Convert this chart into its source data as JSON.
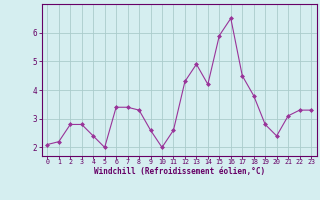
{
  "x": [
    0,
    1,
    2,
    3,
    4,
    5,
    6,
    7,
    8,
    9,
    10,
    11,
    12,
    13,
    14,
    15,
    16,
    17,
    18,
    19,
    20,
    21,
    22,
    23
  ],
  "y": [
    2.1,
    2.2,
    2.8,
    2.8,
    2.4,
    2.0,
    3.4,
    3.4,
    3.3,
    2.6,
    2.0,
    2.6,
    4.3,
    4.9,
    4.2,
    5.9,
    6.5,
    4.5,
    3.8,
    2.8,
    2.4,
    3.1,
    3.3,
    3.3
  ],
  "line_color": "#993399",
  "marker_color": "#993399",
  "bg_color": "#d5eef0",
  "grid_color": "#aacccc",
  "axis_color": "#660066",
  "xlabel": "Windchill (Refroidissement éolien,°C)",
  "xlabel_color": "#660066",
  "tick_color": "#660066",
  "yticks": [
    2,
    3,
    4,
    5,
    6
  ],
  "ylim": [
    1.7,
    7.0
  ],
  "xlim": [
    -0.5,
    23.5
  ],
  "xticks": [
    0,
    1,
    2,
    3,
    4,
    5,
    6,
    7,
    8,
    9,
    10,
    11,
    12,
    13,
    14,
    15,
    16,
    17,
    18,
    19,
    20,
    21,
    22,
    23
  ]
}
